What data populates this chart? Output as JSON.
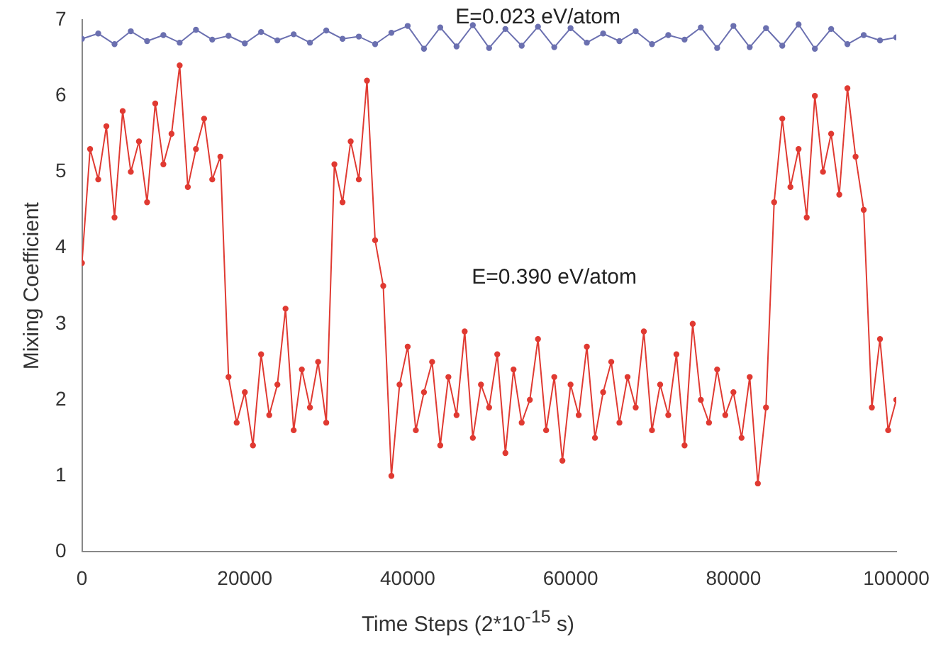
{
  "chart_data": {
    "type": "line",
    "xlabel": "Time Steps (2*10$^{-15}$ s)",
    "ylabel": "Mixing Coefficient",
    "xlim": [
      0,
      100000
    ],
    "xticks": [
      0,
      20000,
      40000,
      60000,
      80000,
      100000
    ],
    "ylim": [
      0,
      7
    ],
    "yticks": [
      0,
      1,
      2,
      3,
      4,
      5,
      6,
      7
    ],
    "grid": false,
    "legend": false,
    "marker": "circle",
    "line_style": "solid",
    "annotations": [
      "E=0.023 eV/atom",
      "E=0.390 eV/atom"
    ],
    "series": [
      {
        "color": "#6b70b0",
        "x": [
          0,
          2000,
          4000,
          6000,
          8000,
          10000,
          12000,
          14000,
          16000,
          18000,
          20000,
          22000,
          24000,
          26000,
          28000,
          30000,
          32000,
          34000,
          36000,
          38000,
          40000,
          42000,
          44000,
          46000,
          48000,
          50000,
          52000,
          54000,
          56000,
          58000,
          60000,
          62000,
          64000,
          66000,
          68000,
          70000,
          72000,
          74000,
          76000,
          78000,
          80000,
          82000,
          84000,
          86000,
          88000,
          90000,
          92000,
          94000,
          96000,
          98000,
          100000
        ],
        "values": [
          6.75,
          6.82,
          6.68,
          6.85,
          6.72,
          6.8,
          6.7,
          6.87,
          6.74,
          6.79,
          6.69,
          6.84,
          6.73,
          6.81,
          6.7,
          6.86,
          6.75,
          6.78,
          6.68,
          6.83,
          6.92,
          6.62,
          6.9,
          6.65,
          6.93,
          6.63,
          6.88,
          6.66,
          6.91,
          6.64,
          6.89,
          6.7,
          6.82,
          6.72,
          6.85,
          6.68,
          6.8,
          6.74,
          6.9,
          6.63,
          6.92,
          6.64,
          6.89,
          6.66,
          6.94,
          6.62,
          6.88,
          6.68,
          6.8,
          6.73,
          6.77
        ]
      },
      {
        "color": "#e03a32",
        "x": [
          0,
          1000,
          2000,
          3000,
          4000,
          5000,
          6000,
          7000,
          8000,
          9000,
          10000,
          11000,
          12000,
          13000,
          14000,
          15000,
          16000,
          17000,
          18000,
          19000,
          20000,
          21000,
          22000,
          23000,
          24000,
          25000,
          26000,
          27000,
          28000,
          29000,
          30000,
          31000,
          32000,
          33000,
          34000,
          35000,
          36000,
          37000,
          38000,
          39000,
          40000,
          41000,
          42000,
          43000,
          44000,
          45000,
          46000,
          47000,
          48000,
          49000,
          50000,
          51000,
          52000,
          53000,
          54000,
          55000,
          56000,
          57000,
          58000,
          59000,
          60000,
          61000,
          62000,
          63000,
          64000,
          65000,
          66000,
          67000,
          68000,
          69000,
          70000,
          71000,
          72000,
          73000,
          74000,
          75000,
          76000,
          77000,
          78000,
          79000,
          80000,
          81000,
          82000,
          83000,
          84000,
          85000,
          86000,
          87000,
          88000,
          89000,
          90000,
          91000,
          92000,
          93000,
          94000,
          95000,
          96000,
          97000,
          98000,
          99000,
          100000
        ],
        "values": [
          3.8,
          5.3,
          4.9,
          5.6,
          4.4,
          5.8,
          5.0,
          5.4,
          4.6,
          5.9,
          5.1,
          5.5,
          6.4,
          4.8,
          5.3,
          5.7,
          4.9,
          5.2,
          2.3,
          1.7,
          2.1,
          1.4,
          2.6,
          1.8,
          2.2,
          3.2,
          1.6,
          2.4,
          1.9,
          2.5,
          1.7,
          5.1,
          4.6,
          5.4,
          4.9,
          6.2,
          4.1,
          3.5,
          1.0,
          2.2,
          2.7,
          1.6,
          2.1,
          2.5,
          1.4,
          2.3,
          1.8,
          2.9,
          1.5,
          2.2,
          1.9,
          2.6,
          1.3,
          2.4,
          1.7,
          2.0,
          2.8,
          1.6,
          2.3,
          1.2,
          2.2,
          1.8,
          2.7,
          1.5,
          2.1,
          2.5,
          1.7,
          2.3,
          1.9,
          2.9,
          1.6,
          2.2,
          1.8,
          2.6,
          1.4,
          3.0,
          2.0,
          1.7,
          2.4,
          1.8,
          2.1,
          1.5,
          2.3,
          0.9,
          1.9,
          4.6,
          5.7,
          4.8,
          5.3,
          4.4,
          6.0,
          5.0,
          5.5,
          4.7,
          6.1,
          5.2,
          4.5,
          1.9,
          2.8,
          1.6,
          2.0
        ]
      }
    ]
  }
}
